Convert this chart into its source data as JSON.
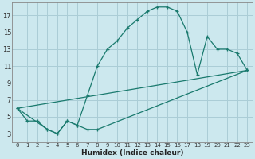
{
  "xlabel": "Humidex (Indice chaleur)",
  "bg_color": "#cce8ee",
  "grid_color": "#aacdd6",
  "line_color": "#1a7a6e",
  "xlim": [
    -0.5,
    23.5
  ],
  "ylim": [
    2.0,
    18.5
  ],
  "xticks": [
    0,
    1,
    2,
    3,
    4,
    5,
    6,
    7,
    8,
    9,
    10,
    11,
    12,
    13,
    14,
    15,
    16,
    17,
    18,
    19,
    20,
    21,
    22,
    23
  ],
  "yticks": [
    3,
    5,
    7,
    9,
    11,
    13,
    15,
    17
  ],
  "curve1_x": [
    0,
    1,
    2,
    3,
    4,
    5,
    6,
    7,
    8,
    9,
    10,
    11,
    12,
    13,
    14,
    15,
    16,
    17,
    18,
    19,
    20,
    21,
    22,
    23
  ],
  "curve1_y": [
    6.0,
    4.5,
    4.5,
    3.5,
    3.0,
    4.5,
    4.0,
    7.5,
    11.0,
    13.0,
    14.0,
    15.5,
    16.5,
    17.5,
    18.0,
    18.0,
    17.5,
    15.0,
    10.0,
    14.5,
    13.0,
    13.0,
    12.5,
    10.5
  ],
  "curve2_x": [
    0,
    3,
    4,
    5,
    6,
    7,
    8,
    23
  ],
  "curve2_y": [
    6.0,
    3.5,
    3.0,
    4.5,
    4.0,
    3.5,
    3.5,
    10.5
  ],
  "curve3_x": [
    0,
    23
  ],
  "curve3_y": [
    6.0,
    10.5
  ]
}
